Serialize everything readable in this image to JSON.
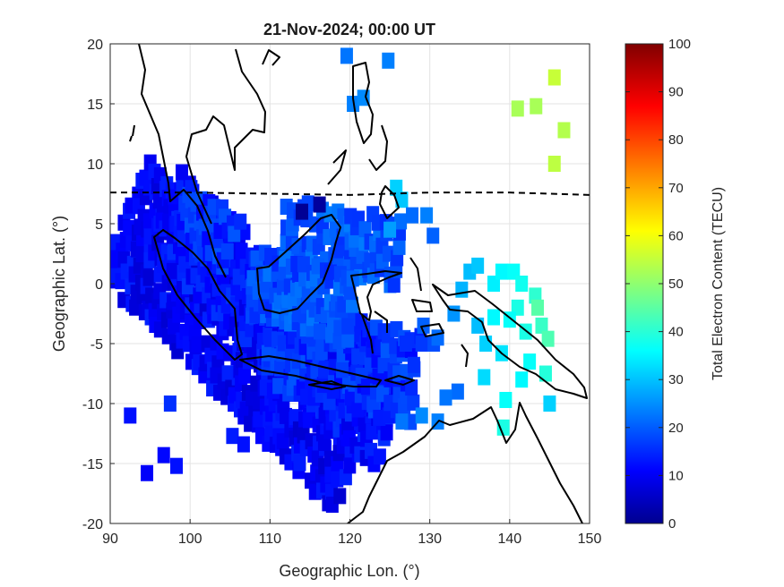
{
  "chart_data": {
    "type": "heatmap",
    "title": "21-Nov-2024; 00:00 UT",
    "xlabel": "Geographic Lon. (°)",
    "ylabel": "Geographic Lat. (°)",
    "xlim": [
      90,
      150
    ],
    "ylim": [
      -20,
      20
    ],
    "x_ticks": [
      "90",
      "100",
      "110",
      "120",
      "130",
      "140",
      "150"
    ],
    "y_ticks": [
      "20",
      "15",
      "10",
      "5",
      "0",
      "-5",
      "-10",
      "-15",
      "-20"
    ],
    "grid": true,
    "colorbar": {
      "label": "Total Electron Content (TECU)",
      "range": [
        0,
        100
      ],
      "ticks": [
        "0",
        "10",
        "20",
        "30",
        "40",
        "50",
        "60",
        "70",
        "80",
        "90",
        "100"
      ],
      "colormap": "jet"
    },
    "dashed_line": [
      [
        90,
        7.6
      ],
      [
        100,
        7.6
      ],
      [
        110,
        7.5
      ],
      [
        120,
        7.4
      ],
      [
        130,
        7.6
      ],
      [
        140,
        7.6
      ],
      [
        150,
        7.4
      ]
    ],
    "cells": [
      [
        119.6,
        19,
        24
      ],
      [
        124.8,
        18.6,
        25
      ],
      [
        120.4,
        15,
        25
      ],
      [
        121.7,
        15.5,
        26
      ],
      [
        114,
        6,
        2
      ],
      [
        116.2,
        6.6,
        3
      ],
      [
        125.8,
        8,
        33
      ],
      [
        126.5,
        7,
        32
      ],
      [
        125,
        4.5,
        28
      ],
      [
        127.8,
        5.7,
        23
      ],
      [
        129.6,
        5.7,
        25
      ],
      [
        130.4,
        4,
        22
      ],
      [
        145.6,
        17.2,
        57
      ],
      [
        141,
        14.6,
        54
      ],
      [
        143.3,
        14.8,
        54
      ],
      [
        146.8,
        12.8,
        55
      ],
      [
        145.6,
        10,
        56
      ],
      [
        92.5,
        -11,
        14
      ],
      [
        94.6,
        -15.8,
        12
      ],
      [
        97.5,
        -10,
        17
      ],
      [
        96.7,
        -14.3,
        13
      ],
      [
        98.3,
        -15.2,
        14
      ],
      [
        105.3,
        -12.7,
        15
      ],
      [
        106.7,
        -13.4,
        14
      ],
      [
        129,
        -11,
        26
      ],
      [
        126.5,
        -11.5,
        24
      ],
      [
        131,
        -11.5,
        25
      ],
      [
        133.5,
        -9,
        23
      ],
      [
        132,
        -9.5,
        24
      ],
      [
        127,
        -5,
        17
      ],
      [
        129,
        -5,
        18
      ],
      [
        130.5,
        -5,
        20
      ],
      [
        129.2,
        -3.5,
        22
      ],
      [
        131,
        -4.5,
        23
      ],
      [
        133,
        -2.5,
        27
      ],
      [
        134,
        -0.5,
        30
      ],
      [
        135,
        1,
        31
      ],
      [
        136,
        1.5,
        32
      ],
      [
        138,
        0,
        36
      ],
      [
        139,
        1,
        37
      ],
      [
        140.5,
        1,
        38
      ],
      [
        141.5,
        0,
        39
      ],
      [
        143.2,
        -1,
        42
      ],
      [
        143.5,
        -2,
        46
      ],
      [
        141,
        -2,
        40
      ],
      [
        138,
        -2.8,
        37
      ],
      [
        140,
        -3,
        38
      ],
      [
        142,
        -4,
        40
      ],
      [
        144,
        -3.5,
        43
      ],
      [
        144.8,
        -4.6,
        45
      ],
      [
        139,
        -5.8,
        35
      ],
      [
        137,
        -5,
        33
      ],
      [
        136,
        -3.5,
        31
      ],
      [
        136.8,
        -7.8,
        34
      ],
      [
        139.5,
        -9.7,
        38
      ],
      [
        139.2,
        -12,
        40
      ],
      [
        141.5,
        -8,
        37
      ],
      [
        145,
        -10,
        33
      ],
      [
        144.5,
        -7.5,
        41
      ],
      [
        142.5,
        -6.5,
        38
      ]
    ]
  }
}
